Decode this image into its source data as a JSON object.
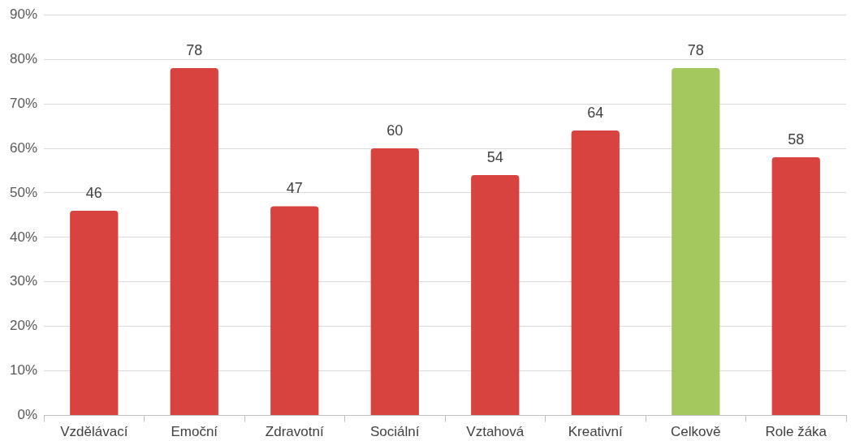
{
  "chart_data": {
    "type": "bar",
    "categories": [
      "Vzdělávací",
      "Emoční",
      "Zdravotní",
      "Sociální",
      "Vztahová",
      "Kreativní",
      "Celkově",
      "Role žáka"
    ],
    "values": [
      46,
      78,
      47,
      60,
      54,
      64,
      78,
      58
    ],
    "colors": [
      "#d8433f",
      "#d8433f",
      "#d8433f",
      "#d8433f",
      "#d8433f",
      "#d8433f",
      "#a4c75e",
      "#d8433f"
    ],
    "ylim": [
      0,
      90
    ],
    "yticks": [
      {
        "value": 0,
        "label": "0%"
      },
      {
        "value": 10,
        "label": "10%"
      },
      {
        "value": 20,
        "label": "20%"
      },
      {
        "value": 30,
        "label": "30%"
      },
      {
        "value": 40,
        "label": "40%"
      },
      {
        "value": 50,
        "label": "50%"
      },
      {
        "value": 60,
        "label": "60%"
      },
      {
        "value": 70,
        "label": "70%"
      },
      {
        "value": 80,
        "label": "80%"
      },
      {
        "value": 90,
        "label": "90%"
      }
    ],
    "grid": "y",
    "data_labels": true
  }
}
